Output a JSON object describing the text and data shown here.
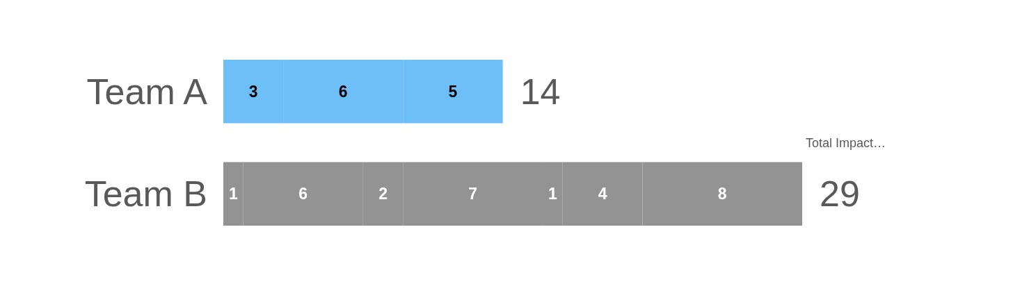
{
  "chart_data": {
    "type": "bar",
    "orientation": "horizontal",
    "stacked": true,
    "tick_labels": "y",
    "categories": [
      "Team A",
      "Team B"
    ],
    "series": [
      {
        "colors": [
          "#6ebef7",
          "#939393"
        ],
        "values": [
          3,
          1
        ]
      },
      {
        "colors": [
          "#6ebef7",
          "#939393"
        ],
        "values": [
          6,
          6
        ]
      },
      {
        "colors": [
          "#6ebef7",
          "#939393"
        ],
        "values": [
          5,
          2
        ]
      },
      {
        "colors": [
          null,
          "#939393"
        ],
        "values": [
          null,
          7
        ]
      },
      {
        "colors": [
          null,
          "#939393"
        ],
        "values": [
          null,
          1
        ]
      },
      {
        "colors": [
          null,
          "#939393"
        ],
        "values": [
          null,
          4
        ]
      },
      {
        "colors": [
          null,
          "#939393"
        ],
        "values": [
          null,
          8
        ]
      }
    ],
    "data_labels": true,
    "totals": [
      "14",
      "29"
    ],
    "annotations": [
      "Total Impact…"
    ]
  }
}
